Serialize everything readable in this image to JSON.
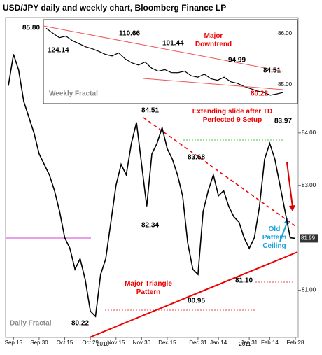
{
  "chart_data": [
    {
      "type": "line",
      "title": "USD/JPY daily and weekly chart, Bloomberg Finance LP",
      "categories": [
        null,
        "Sep 15",
        null,
        null,
        null,
        null,
        "Sep 30",
        null,
        null,
        null,
        null,
        "Oct 15",
        null,
        null,
        null,
        null,
        "Oct 29",
        null,
        null,
        null,
        null,
        "Nov 15",
        null,
        null,
        null,
        null,
        "Nov 30",
        null,
        null,
        null,
        null,
        "Dec 15",
        null,
        null,
        null,
        null,
        null,
        "Dec 31",
        null,
        null,
        null,
        "Jan 14",
        null,
        null,
        null,
        null,
        null,
        "Jan 31",
        null,
        null,
        null,
        "Feb 14",
        null,
        null,
        null,
        null,
        "Feb 28"
      ],
      "year_labels": [
        "2010",
        "2011"
      ],
      "series": [
        {
          "name": "USD/JPY",
          "color": "#000000",
          "values": [
            84.9,
            85.5,
            85.2,
            84.6,
            84.3,
            84.0,
            83.6,
            83.4,
            83.2,
            82.9,
            82.5,
            82.0,
            81.8,
            81.4,
            81.6,
            81.2,
            80.6,
            80.5,
            81.3,
            81.6,
            82.3,
            83.0,
            83.4,
            83.2,
            83.8,
            84.2,
            83.4,
            82.6,
            83.6,
            83.8,
            84.1,
            83.7,
            83.5,
            83.2,
            82.8,
            81.9,
            81.4,
            81.3,
            82.5,
            82.9,
            83.2,
            82.8,
            82.9,
            82.6,
            82.4,
            82.3,
            82.0,
            81.8,
            82.0,
            82.6,
            83.5,
            83.8,
            83.5,
            83.0,
            82.5,
            82.0,
            81.99
          ]
        }
      ],
      "ylim": [
        80.1,
        86.2
      ],
      "yticks": [
        {
          "value": 84,
          "label": "84.00"
        },
        {
          "value": 83,
          "label": "83.00"
        },
        {
          "value": 81,
          "label": "81.00"
        }
      ],
      "last_price": {
        "value": 81.99,
        "label": "81.99"
      },
      "annotations": [
        "85.80",
        "84.51",
        "83.97",
        "83.68",
        "82.34",
        "80.95",
        "81.10",
        "80.22",
        "Extending slide after TD Perfected 9 Setup",
        "Major Triangle Pattern",
        "Old Pattern Ceiling",
        "Daily Fractal"
      ]
    },
    {
      "type": "line",
      "series": [
        {
          "name": "Weekly",
          "color": "#000000",
          "values": [
            124.14,
            121,
            118,
            119,
            116,
            114,
            112,
            110.66,
            109,
            107,
            106,
            108,
            104,
            101.44,
            100,
            102,
            98,
            96,
            97,
            95,
            94.99,
            96,
            93,
            92,
            94,
            91,
            90,
            92,
            89,
            88,
            86,
            84.51,
            83,
            82,
            80.22,
            81,
            82
          ]
        }
      ],
      "ylim": [
        76,
        128
      ],
      "axis_labels": [
        "86.00",
        "85.00"
      ],
      "annotations": [
        "124.14",
        "110.66",
        "101.44",
        "Major Downtrend",
        "94.99",
        "84.51",
        "80.22",
        "Weekly Fractal"
      ]
    }
  ]
}
